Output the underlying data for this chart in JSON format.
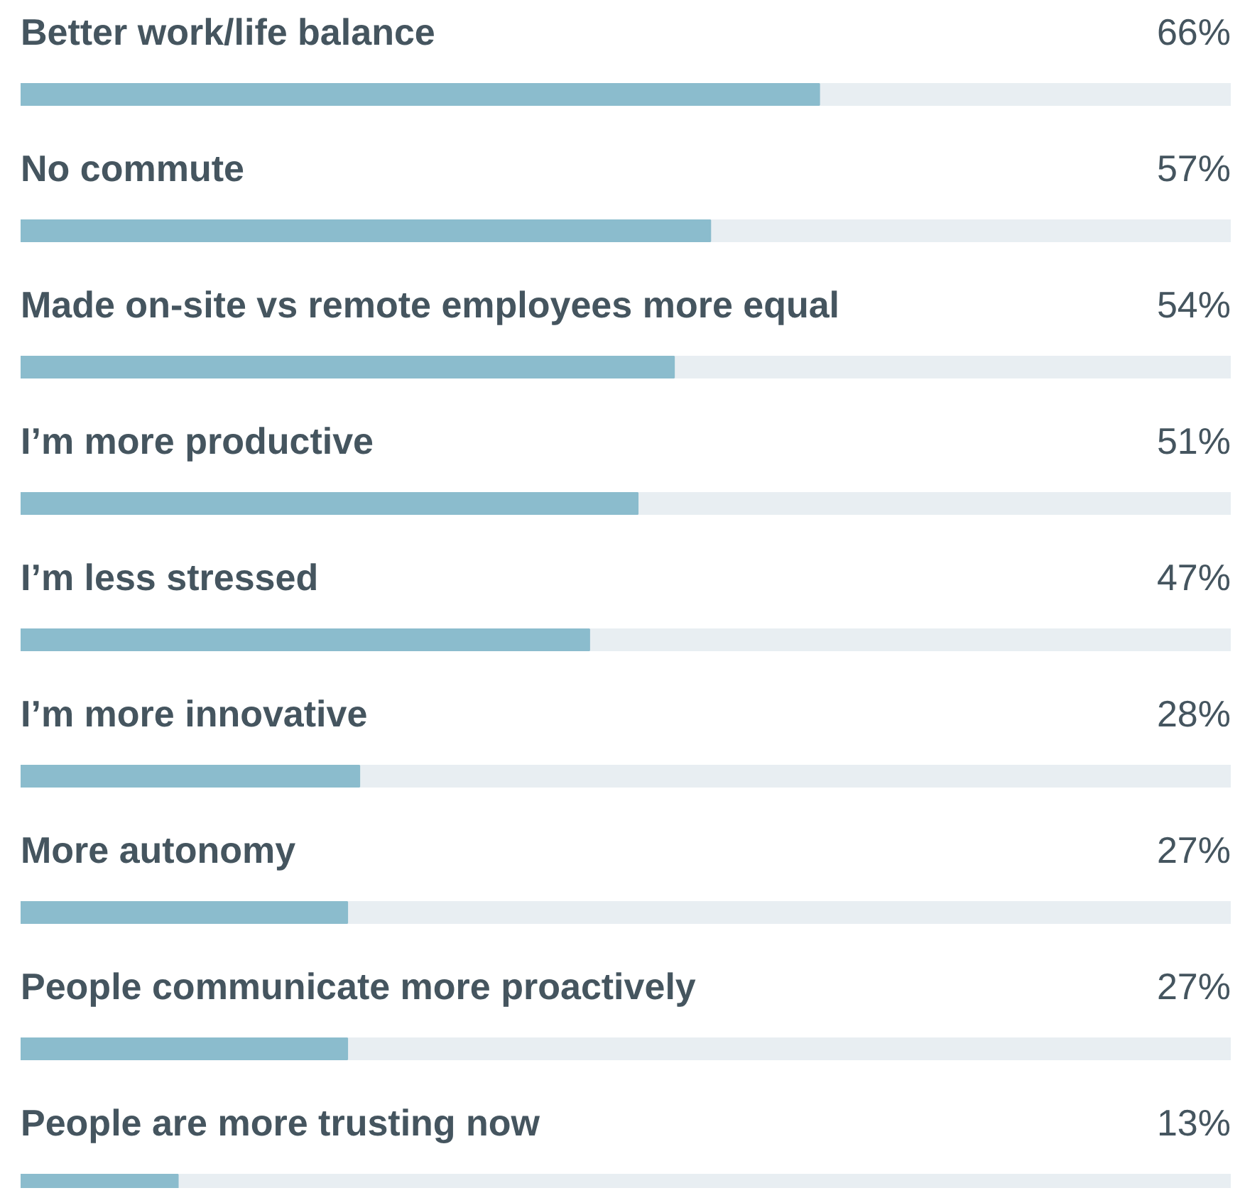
{
  "chart_data": {
    "type": "bar",
    "orientation": "horizontal",
    "categories": [
      "Better work/life balance",
      "No commute",
      "Made on-site vs remote employees more equal",
      "I’m more productive",
      "I’m less stressed",
      "I’m more innovative",
      "More autonomy",
      "People communicate more proactively",
      "People are more trusting now"
    ],
    "values": [
      66,
      57,
      54,
      51,
      47,
      28,
      27,
      27,
      13
    ],
    "value_labels": [
      "66%",
      "57%",
      "54%",
      "51%",
      "47%",
      "28%",
      "27%",
      "27%",
      "13%"
    ],
    "color": "#8bbccd",
    "xlim": [
      0,
      100
    ]
  }
}
